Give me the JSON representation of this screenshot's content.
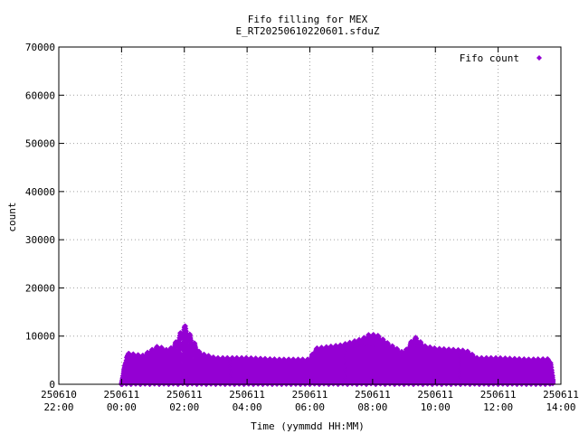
{
  "chart_data": {
    "type": "scatter",
    "title": "Fifo filling for MEX",
    "subtitle": "E_RT20250610220601.sfduZ",
    "xlabel": "Time (yymmdd HH:MM)",
    "ylabel": "count",
    "x_range_hours": [
      0,
      16
    ],
    "ylim": [
      0,
      70000
    ],
    "grid": true,
    "legend_position": "top-right",
    "x_ticks": [
      {
        "line1": "250610",
        "line2": "22:00"
      },
      {
        "line1": "250611",
        "line2": "00:00"
      },
      {
        "line1": "250611",
        "line2": "02:00"
      },
      {
        "line1": "250611",
        "line2": "04:00"
      },
      {
        "line1": "250611",
        "line2": "06:00"
      },
      {
        "line1": "250611",
        "line2": "08:00"
      },
      {
        "line1": "250611",
        "line2": "10:00"
      },
      {
        "line1": "250611",
        "line2": "12:00"
      },
      {
        "line1": "250611",
        "line2": "14:00"
      }
    ],
    "y_ticks": [
      "0",
      "10000",
      "20000",
      "30000",
      "40000",
      "50000",
      "60000",
      "70000"
    ],
    "series": [
      {
        "name": "Fifo count",
        "color": "#9400d3",
        "envelope": [
          {
            "t": "250611 00:00",
            "y": 0
          },
          {
            "t": "250611 00:10",
            "y": 6500
          },
          {
            "t": "250611 00:40",
            "y": 6000
          },
          {
            "t": "250611 01:10",
            "y": 8000
          },
          {
            "t": "250611 01:30",
            "y": 7000
          },
          {
            "t": "250611 01:45",
            "y": 9000
          },
          {
            "t": "250611 02:00",
            "y": 12500
          },
          {
            "t": "250611 02:15",
            "y": 9500
          },
          {
            "t": "250611 02:30",
            "y": 6500
          },
          {
            "t": "250611 03:00",
            "y": 5500
          },
          {
            "t": "250611 04:00",
            "y": 5500
          },
          {
            "t": "250611 05:00",
            "y": 5200
          },
          {
            "t": "250611 06:00",
            "y": 5200
          },
          {
            "t": "250611 06:10",
            "y": 7500
          },
          {
            "t": "250611 07:00",
            "y": 8200
          },
          {
            "t": "250611 07:40",
            "y": 9500
          },
          {
            "t": "250611 07:55",
            "y": 10500
          },
          {
            "t": "250611 08:10",
            "y": 10200
          },
          {
            "t": "250611 08:30",
            "y": 8500
          },
          {
            "t": "250611 09:00",
            "y": 6500
          },
          {
            "t": "250611 09:20",
            "y": 10000
          },
          {
            "t": "250611 09:40",
            "y": 8000
          },
          {
            "t": "250611 10:00",
            "y": 7500
          },
          {
            "t": "250611 10:40",
            "y": 7200
          },
          {
            "t": "250611 11:00",
            "y": 7000
          },
          {
            "t": "250611 11:20",
            "y": 5500
          },
          {
            "t": "250611 12:00",
            "y": 5500
          },
          {
            "t": "250611 13:00",
            "y": 5200
          },
          {
            "t": "250611 13:40",
            "y": 5300
          },
          {
            "t": "250611 13:45",
            "y": 500
          }
        ]
      }
    ]
  }
}
